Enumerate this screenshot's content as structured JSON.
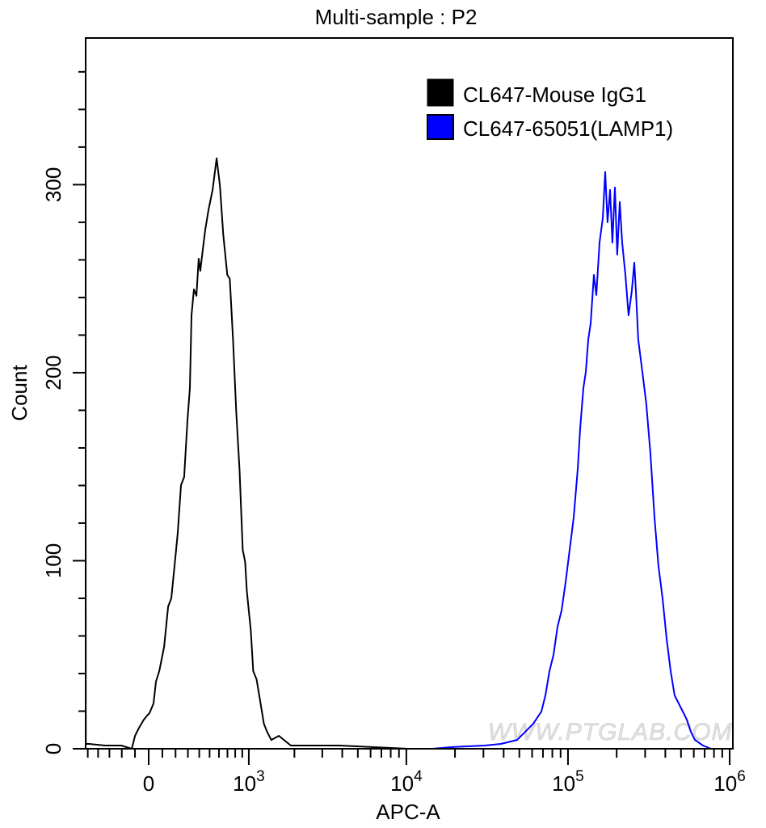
{
  "chart_data": {
    "type": "line",
    "title": "Multi-sample : P2",
    "xlabel": "APC-A",
    "ylabel": "Count",
    "x_scale": "biexponential",
    "xlim": [
      -520,
      1000000
    ],
    "ylim": [
      0,
      378
    ],
    "grid": false,
    "legend_position": "top-right",
    "x_ticks": [
      {
        "value": 0,
        "base": "0",
        "exp": ""
      },
      {
        "value": 1000,
        "base": "10",
        "exp": "3"
      },
      {
        "value": 10000,
        "base": "10",
        "exp": "4"
      },
      {
        "value": 100000,
        "base": "10",
        "exp": "5"
      },
      {
        "value": 1000000,
        "base": "10",
        "exp": "6"
      }
    ],
    "y_ticks": [
      {
        "value": 0,
        "label": "0"
      },
      {
        "value": 100,
        "label": "100"
      },
      {
        "value": 200,
        "label": "200"
      },
      {
        "value": 300,
        "label": "300"
      }
    ],
    "series": [
      {
        "name": "CL647-Mouse IgG1",
        "color": "#000000",
        "points": [
          [
            -522,
            0
          ],
          [
            -522,
            153
          ],
          [
            -520,
            2.6
          ],
          [
            -489,
            2.6
          ],
          [
            -338,
            1.7
          ],
          [
            -205,
            1.7
          ],
          [
            -124,
            0
          ],
          [
            -100,
            6.9
          ],
          [
            -70,
            11.2
          ],
          [
            -35,
            15.5
          ],
          [
            -12,
            17.6
          ],
          [
            6,
            18.9
          ],
          [
            35,
            24.1
          ],
          [
            53,
            35.7
          ],
          [
            77,
            41.3
          ],
          [
            113,
            54.2
          ],
          [
            143,
            75.7
          ],
          [
            167,
            80
          ],
          [
            192,
            97.2
          ],
          [
            217,
            114.4
          ],
          [
            243,
            140.2
          ],
          [
            269,
            144.5
          ],
          [
            296,
            174.6
          ],
          [
            317,
            191.8
          ],
          [
            331,
            230.5
          ],
          [
            352,
            244.3
          ],
          [
            374,
            240.9
          ],
          [
            395,
            260.6
          ],
          [
            410,
            254.2
          ],
          [
            425,
            261.5
          ],
          [
            456,
            275.7
          ],
          [
            489,
            286.5
          ],
          [
            531,
            297.2
          ],
          [
            574,
            314
          ],
          [
            611,
            299.4
          ],
          [
            649,
            273.5
          ],
          [
            698,
            252
          ],
          [
            729,
            249.9
          ],
          [
            771,
            217.6
          ],
          [
            815,
            178.9
          ],
          [
            860,
            148.8
          ],
          [
            907,
            105.8
          ],
          [
            943,
            99.4
          ],
          [
            968,
            84.3
          ],
          [
            1033,
            62.8
          ],
          [
            1073,
            41.3
          ],
          [
            1130,
            37
          ],
          [
            1204,
            24.1
          ],
          [
            1266,
            13.3
          ],
          [
            1330,
            9
          ],
          [
            1416,
            4.7
          ],
          [
            1588,
            6.9
          ],
          [
            1897,
            1.7
          ],
          [
            2406,
            1.7
          ],
          [
            3840,
            1.7
          ],
          [
            6096,
            0.9
          ],
          [
            10250,
            0
          ]
        ]
      },
      {
        "name": "CL647-65051(LAMP1)",
        "color": "#0000ff",
        "points": [
          [
            14480,
            0
          ],
          [
            19300,
            0.9
          ],
          [
            30570,
            1.7
          ],
          [
            38480,
            2.6
          ],
          [
            48450,
            4.7
          ],
          [
            54370,
            9
          ],
          [
            60970,
            13.3
          ],
          [
            68470,
            19.8
          ],
          [
            72500,
            28.4
          ],
          [
            76810,
            41.3
          ],
          [
            81320,
            49.9
          ],
          [
            86190,
            64.9
          ],
          [
            91240,
            73.5
          ],
          [
            96700,
            88.6
          ],
          [
            102460,
            105.8
          ],
          [
            108450,
            123
          ],
          [
            114950,
            148.8
          ],
          [
            118930,
            170.3
          ],
          [
            124520,
            191.8
          ],
          [
            128950,
            200.4
          ],
          [
            133420,
            217.6
          ],
          [
            138130,
            226.2
          ],
          [
            144640,
            252
          ],
          [
            149630,
            241.3
          ],
          [
            156700,
            269.2
          ],
          [
            164070,
            282.2
          ],
          [
            169910,
            306.7
          ],
          [
            175770,
            280
          ],
          [
            182020,
            297.2
          ],
          [
            188320,
            269.2
          ],
          [
            195080,
            298.5
          ],
          [
            201710,
            262.8
          ],
          [
            209020,
            290.8
          ],
          [
            216240,
            269.2
          ],
          [
            226440,
            252
          ],
          [
            237050,
            230.5
          ],
          [
            248220,
            243.4
          ],
          [
            257040,
            258.5
          ],
          [
            263160,
            243.4
          ],
          [
            272090,
            217.6
          ],
          [
            288400,
            200.4
          ],
          [
            305240,
            183.2
          ],
          [
            323340,
            157.4
          ],
          [
            342720,
            123
          ],
          [
            362870,
            97.2
          ],
          [
            384540,
            80
          ],
          [
            407240,
            58.5
          ],
          [
            431460,
            41.3
          ],
          [
            456700,
            28.4
          ],
          [
            484000,
            24.1
          ],
          [
            512800,
            19.8
          ],
          [
            543150,
            15.5
          ],
          [
            575540,
            9
          ],
          [
            609450,
            4.7
          ],
          [
            683660,
            1.7
          ],
          [
            767300,
            0
          ],
          [
            912100,
            0
          ]
        ]
      }
    ],
    "watermark": "WWW.PTGLAB.COM"
  }
}
